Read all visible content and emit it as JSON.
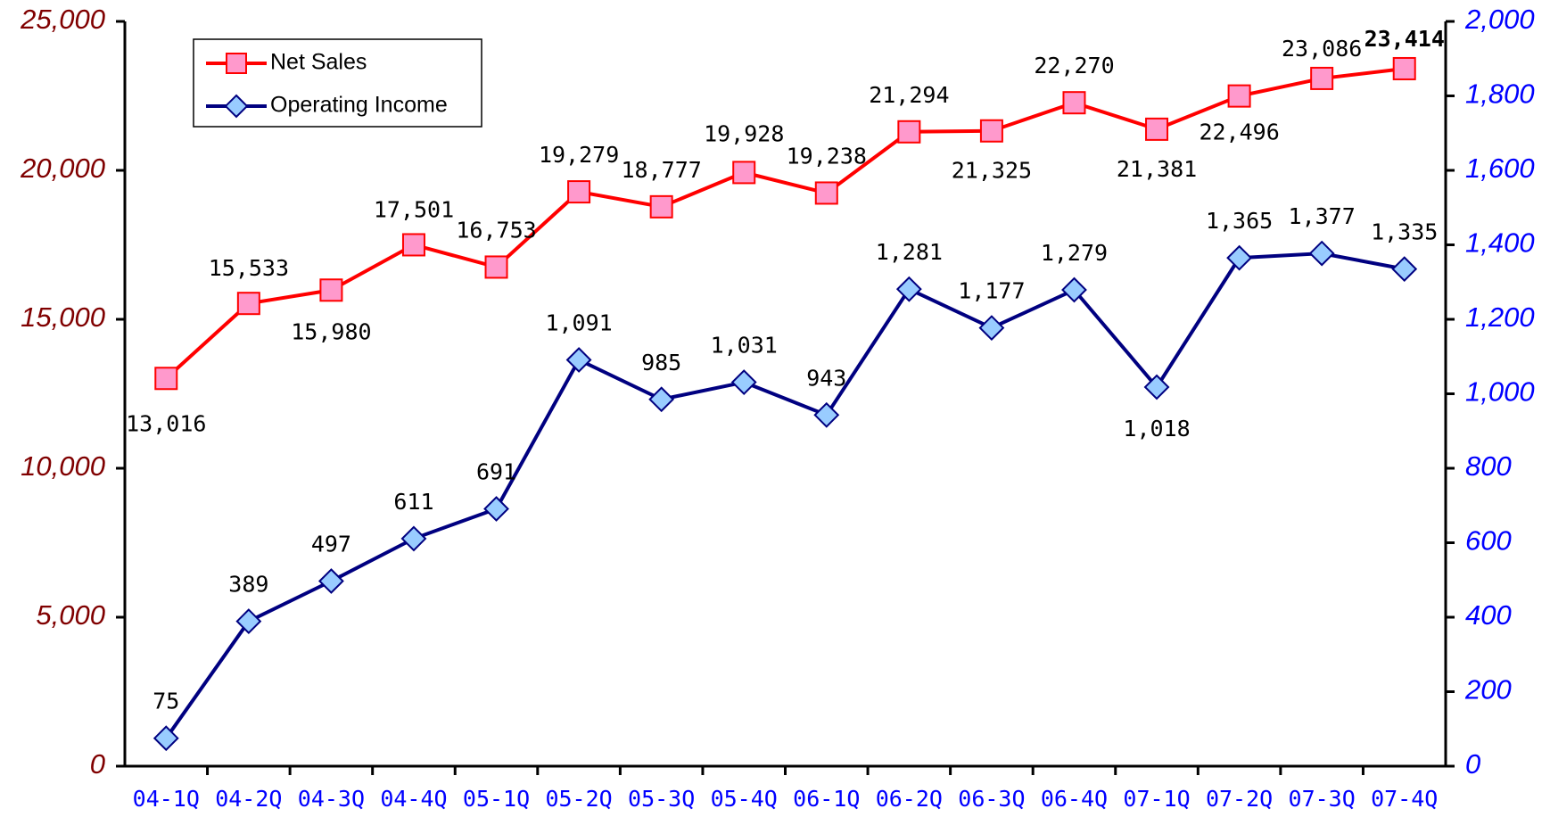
{
  "chart_data": {
    "type": "line",
    "categories": [
      "04-1Q",
      "04-2Q",
      "04-3Q",
      "04-4Q",
      "05-1Q",
      "05-2Q",
      "05-3Q",
      "05-4Q",
      "06-1Q",
      "06-2Q",
      "06-3Q",
      "06-4Q",
      "07-1Q",
      "07-2Q",
      "07-3Q",
      "07-4Q"
    ],
    "series": [
      {
        "name": "Net Sales",
        "color": "#ff0000",
        "marker_color": "#ff99cc",
        "values": [
          13016,
          15533,
          15980,
          17501,
          16753,
          19279,
          18777,
          19928,
          19238,
          21294,
          21325,
          22270,
          21381,
          22496,
          23086,
          23414
        ],
        "value_labels": [
          "13,016",
          "15,533",
          "15,980",
          "17,501",
          "16,753",
          "19,279",
          "18,777",
          "19,928",
          "19,238",
          "21,294",
          "21,325",
          "22,270",
          "21,381",
          "22,496",
          "23,086",
          "23,414"
        ]
      },
      {
        "name": "Operating Income",
        "color": "#000080",
        "marker_color": "#99ccff",
        "axis": "y2",
        "values": [
          75,
          389,
          497,
          611,
          691,
          1091,
          985,
          1031,
          943,
          1281,
          1177,
          1279,
          1018,
          1365,
          1377,
          1335
        ],
        "value_labels": [
          "75",
          "389",
          "497",
          "611",
          "691",
          "1,091",
          "985",
          "1,031",
          "943",
          "1,281",
          "1,177",
          "1,279",
          "1,018",
          "1,365",
          "1,377",
          "1,335"
        ]
      }
    ],
    "ylim": [
      0,
      25000
    ],
    "yticks": [
      0,
      {
        "value": 5000,
        "label": "5,000"
      },
      {
        "value": 10000,
        "label": "10,000"
      },
      {
        "value": 15000,
        "label": "15,000"
      },
      {
        "value": 20000,
        "label": "20,000"
      },
      {
        "value": 25000,
        "label": "25,000"
      }
    ],
    "y2lim": [
      0,
      2000
    ],
    "y2ticks": [
      0,
      200,
      400,
      600,
      800,
      {
        "value": 1000,
        "label": "1,000"
      },
      {
        "value": 1200,
        "label": "1,200"
      },
      {
        "value": 1400,
        "label": "1,400"
      },
      {
        "value": 1600,
        "label": "1,600"
      },
      {
        "value": 1800,
        "label": "1,800"
      },
      {
        "value": 2000,
        "label": "2,000"
      }
    ],
    "legend": "upper left"
  }
}
